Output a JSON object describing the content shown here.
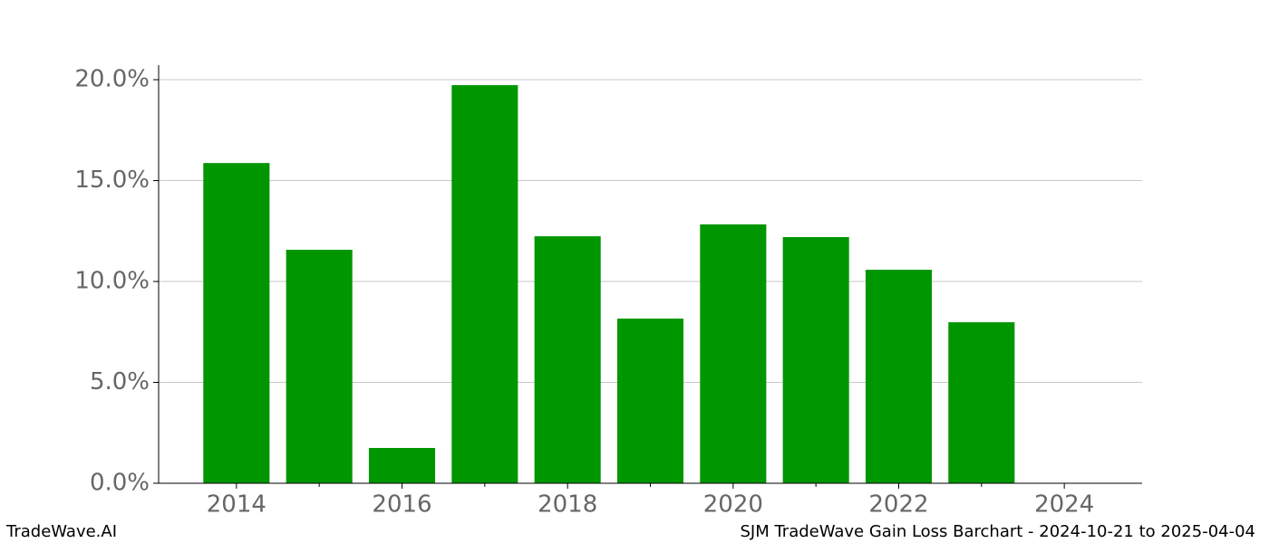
{
  "chart_data": {
    "type": "bar",
    "x": [
      2014,
      2015,
      2016,
      2017,
      2018,
      2019,
      2020,
      2021,
      2022,
      2023,
      2024
    ],
    "values": [
      15.87,
      11.57,
      1.75,
      19.73,
      12.24,
      8.16,
      12.83,
      12.2,
      10.58,
      7.98,
      0
    ],
    "color": "#009600",
    "xlim": [
      2013.06,
      2024.94
    ],
    "xticks": [
      2014,
      2016,
      2018,
      2020,
      2022,
      2024
    ],
    "xminorticks": [
      2015,
      2017,
      2019,
      2021,
      2023
    ],
    "bar_width": 0.8,
    "ylim": [
      0,
      20.72
    ],
    "yticks": [
      {
        "value": 0,
        "label": "0.0%"
      },
      {
        "value": 5,
        "label": "5.0%"
      },
      {
        "value": 10,
        "label": "10.0%"
      },
      {
        "value": 15,
        "label": "15.0%"
      },
      {
        "value": 20,
        "label": "20.0%"
      }
    ],
    "grid": true
  },
  "footer": {
    "left": "TradeWave.AI",
    "right": "SJM TradeWave Gain Loss Barchart - 2024-10-21 to 2025-04-04"
  }
}
